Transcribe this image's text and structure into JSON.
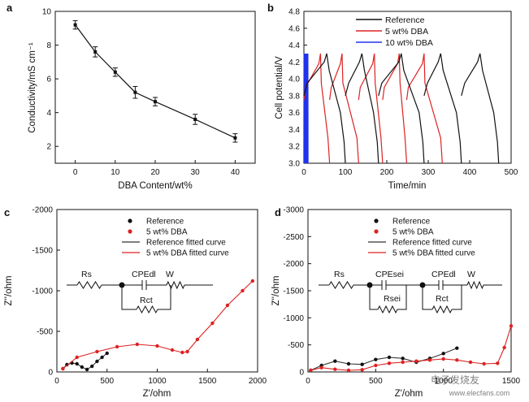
{
  "figure": {
    "watermark": "电子发烧友",
    "watermark_url": "www.elecfans.com"
  },
  "chart_data": [
    {
      "panel": "a",
      "type": "line",
      "xlabel": "DBA Content/wt%",
      "ylabel": "Conductivity/mS cm⁻¹",
      "xlim": [
        -5,
        45
      ],
      "ylim": [
        1,
        10
      ],
      "xticks": [
        0,
        10,
        20,
        30,
        40
      ],
      "yticks": [
        2,
        4,
        6,
        8,
        10
      ],
      "grid": false,
      "series": [
        {
          "name": "Conductivity",
          "color": "#111111",
          "x": [
            0,
            5,
            10,
            15,
            20,
            30,
            40
          ],
          "y": [
            9.2,
            7.6,
            6.4,
            5.2,
            4.65,
            3.6,
            2.5
          ],
          "err": [
            0.25,
            0.3,
            0.25,
            0.35,
            0.25,
            0.3,
            0.25
          ]
        }
      ]
    },
    {
      "panel": "b",
      "type": "line",
      "xlabel": "Time/min",
      "ylabel": "Cell potential/V",
      "xlim": [
        0,
        500
      ],
      "ylim": [
        3.0,
        4.8
      ],
      "xticks": [
        0,
        100,
        200,
        300,
        400,
        500
      ],
      "yticks": [
        3.0,
        3.2,
        3.4,
        3.6,
        3.8,
        4.0,
        4.2,
        4.4,
        4.6,
        4.8
      ],
      "legend": "top-right",
      "series": [
        {
          "name": "Reference",
          "color": "#111111"
        },
        {
          "name": "5 wt% DBA",
          "color": "#dd2222"
        },
        {
          "name": "10 wt% DBA",
          "color": "#2233ee"
        }
      ]
    },
    {
      "panel": "c",
      "type": "scatter",
      "xlabel": "Z'/ohm",
      "ylabel": "Z''/ohm",
      "xlim": [
        0,
        2000
      ],
      "ylim": [
        0,
        -2000
      ],
      "xticks": [
        0,
        500,
        1000,
        1500,
        2000
      ],
      "yticks": [
        0,
        -500,
        -1000,
        -1500,
        -2000
      ],
      "legend": "top",
      "legend_entries": [
        "Reference",
        "5 wt% DBA",
        "Reference fitted curve",
        "5 wt% DBA fitted curve"
      ],
      "circuit_labels": [
        "Rs",
        "CPEdl",
        "Rct",
        "W"
      ],
      "series": [
        {
          "name": "Reference",
          "color": "#111111",
          "x": [
            60,
            100,
            150,
            200,
            250,
            300,
            350,
            400,
            450,
            500
          ],
          "y": [
            -40,
            -90,
            -110,
            -100,
            -60,
            -30,
            -70,
            -130,
            -180,
            -230
          ]
        },
        {
          "name": "5 wt% DBA",
          "color": "#dd2222",
          "x": [
            60,
            200,
            400,
            600,
            800,
            1000,
            1150,
            1250,
            1300,
            1400,
            1550,
            1700,
            1850,
            1950
          ],
          "y": [
            -40,
            -180,
            -250,
            -310,
            -340,
            -320,
            -270,
            -240,
            -250,
            -400,
            -600,
            -820,
            -1000,
            -1120
          ]
        }
      ]
    },
    {
      "panel": "d",
      "type": "scatter",
      "xlabel": "Z'/ohm",
      "ylabel": "Z''/ohm",
      "xlim": [
        0,
        1500
      ],
      "ylim": [
        0,
        -3000
      ],
      "xticks": [
        0,
        500,
        1000,
        1500
      ],
      "yticks": [
        0,
        -500,
        -1000,
        -1500,
        -2000,
        -2500,
        -3000
      ],
      "legend": "top",
      "legend_entries": [
        "Reference",
        "5 wt% DBA",
        "Reference fitted curve",
        "5 wt% DBA fitted curve"
      ],
      "circuit_labels": [
        "Rs",
        "CPEsei",
        "Rsei",
        "CPEdl",
        "Rct",
        "W"
      ],
      "series": [
        {
          "name": "Reference",
          "color": "#111111",
          "x": [
            20,
            100,
            200,
            300,
            400,
            500,
            600,
            700,
            800,
            900,
            1000,
            1100
          ],
          "y": [
            -30,
            -120,
            -200,
            -150,
            -140,
            -230,
            -270,
            -250,
            -180,
            -250,
            -340,
            -440
          ]
        },
        {
          "name": "5 wt% DBA",
          "color": "#dd2222",
          "x": [
            20,
            100,
            200,
            300,
            400,
            500,
            600,
            700,
            800,
            900,
            1000,
            1100,
            1200,
            1300,
            1400,
            1450,
            1500
          ],
          "y": [
            -30,
            -80,
            -50,
            -30,
            -40,
            -120,
            -160,
            -180,
            -200,
            -220,
            -240,
            -220,
            -180,
            -150,
            -160,
            -450,
            -850
          ]
        }
      ]
    }
  ]
}
